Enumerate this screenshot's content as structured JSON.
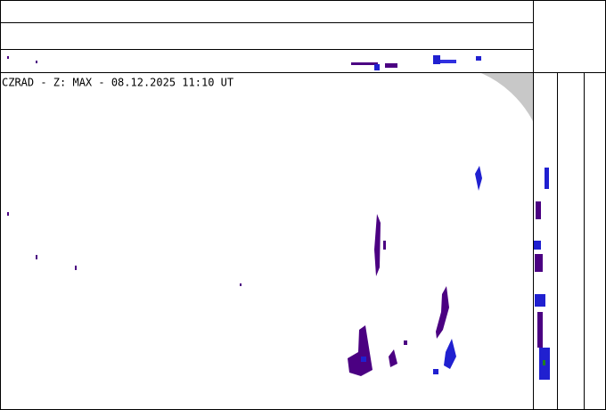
{
  "header": {
    "title": "CZRAD - Z: MAX - 08.12.2025 11:10 UT"
  }
}
